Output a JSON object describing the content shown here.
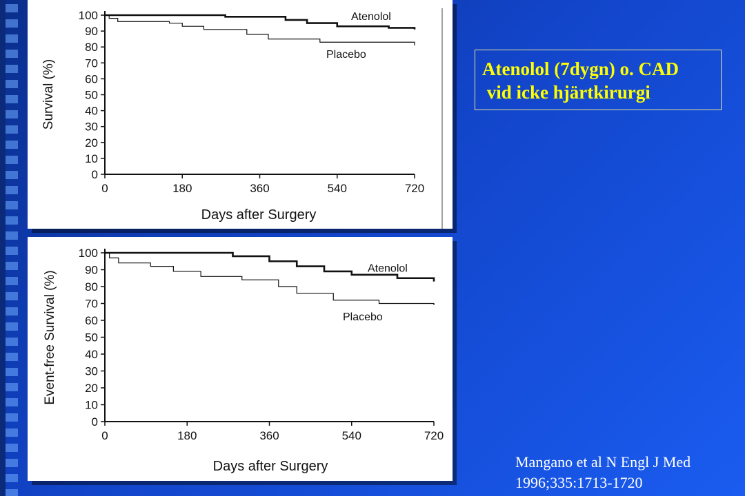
{
  "slide": {
    "title_line1": "Atenolol (7dygn) o. CAD",
    "title_line2": " vid icke hjärtkirurgi",
    "citation_line1": "Mangano et al N Engl J Med",
    "citation_line2": "1996;335:1713-1720",
    "colors": {
      "background": "#1244c8",
      "title": "#ffff00",
      "citation": "#ffffff"
    }
  },
  "chart_data": [
    {
      "type": "line",
      "step": true,
      "ylabel": "Survival (%)",
      "xlabel": "Days after Surgery",
      "xlim": [
        0,
        720
      ],
      "ylim": [
        0,
        100
      ],
      "xticks": [
        0,
        180,
        360,
        540,
        720
      ],
      "yticks": [
        0,
        10,
        20,
        30,
        40,
        50,
        60,
        70,
        80,
        90,
        100
      ],
      "series": [
        {
          "name": "Atenolol",
          "x": [
            0,
            230,
            280,
            420,
            470,
            540,
            660,
            720
          ],
          "y": [
            100,
            100,
            99,
            97,
            95,
            93,
            92,
            91
          ]
        },
        {
          "name": "Placebo",
          "x": [
            0,
            10,
            30,
            150,
            180,
            230,
            330,
            380,
            500,
            720
          ],
          "y": [
            100,
            98,
            96,
            95,
            93,
            91,
            88,
            85,
            83,
            81
          ]
        }
      ]
    },
    {
      "type": "line",
      "step": true,
      "ylabel": "Event-free Survival (%)",
      "xlabel": "Days after Surgery",
      "xlim": [
        0,
        720
      ],
      "ylim": [
        0,
        100
      ],
      "xticks": [
        0,
        180,
        360,
        540,
        720
      ],
      "yticks": [
        0,
        10,
        20,
        30,
        40,
        50,
        60,
        70,
        80,
        90,
        100
      ],
      "series": [
        {
          "name": "Atenolol",
          "x": [
            0,
            230,
            280,
            360,
            420,
            480,
            540,
            640,
            720
          ],
          "y": [
            100,
            100,
            98,
            95,
            92,
            89,
            87,
            85,
            83
          ]
        },
        {
          "name": "Placebo",
          "x": [
            0,
            10,
            30,
            100,
            150,
            210,
            300,
            380,
            420,
            500,
            600,
            720
          ],
          "y": [
            100,
            97,
            94,
            92,
            89,
            86,
            84,
            80,
            76,
            72,
            70,
            69
          ]
        }
      ]
    }
  ]
}
